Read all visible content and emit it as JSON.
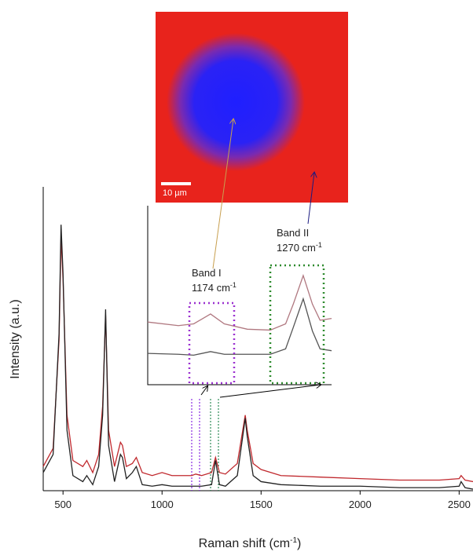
{
  "chart_data": [
    {
      "type": "line",
      "x_label": "Raman shift (cm",
      "x_label_sup": "-1",
      "x_label_end": ")",
      "y_label": "Intensity (a.u.)",
      "x": [
        400,
        450,
        480,
        490,
        500,
        520,
        550,
        600,
        620,
        650,
        680,
        700,
        715,
        730,
        760,
        790,
        800,
        820,
        850,
        870,
        900,
        950,
        1000,
        1050,
        1100,
        1150,
        1170,
        1200,
        1250,
        1270,
        1290,
        1320,
        1380,
        1420,
        1430,
        1460,
        1500,
        1600,
        1800,
        2000,
        2200,
        2400,
        2500,
        2510,
        2530,
        2570
      ],
      "series": [
        {
          "color": "#c0282d",
          "values": [
            8,
            14,
            50,
            84,
            70,
            25,
            10,
            8,
            10,
            6,
            12,
            28,
            58,
            20,
            8,
            16,
            15,
            8,
            9,
            11,
            6,
            5,
            6,
            5,
            5,
            5,
            5.5,
            5,
            6,
            11,
            6,
            5.5,
            9,
            25,
            20,
            9,
            7,
            5,
            4.5,
            4,
            3.5,
            3.5,
            4,
            5,
            3.5,
            3
          ]
        },
        {
          "color": "#222222",
          "values": [
            6,
            12,
            52,
            88,
            72,
            20,
            5,
            3,
            5,
            2,
            8,
            25,
            60,
            15,
            3,
            12,
            11,
            4,
            6,
            8,
            2,
            1.5,
            2,
            1.5,
            1.5,
            1.5,
            1.5,
            1.5,
            2,
            10,
            2,
            1.5,
            5,
            24,
            18,
            5,
            3,
            2,
            1.5,
            1.5,
            1,
            1,
            1.5,
            3,
            1,
            0.5
          ]
        }
      ],
      "xlim": [
        400,
        2570
      ],
      "ylim": [
        0,
        100
      ],
      "xticks": [
        500,
        1000,
        1500,
        2000,
        2500
      ]
    },
    {
      "type": "line",
      "x": [
        1100,
        1140,
        1160,
        1182,
        1200,
        1230,
        1260,
        1280,
        1290,
        1303,
        1315,
        1325,
        1340
      ],
      "series": [
        {
          "color": "#b07880",
          "values": [
            35,
            33,
            34,
            39.5,
            34,
            31,
            30.5,
            34,
            45,
            61,
            45,
            36,
            37
          ]
        },
        {
          "color": "#555555",
          "values": [
            17.5,
            17,
            16.5,
            18.5,
            17,
            17,
            17,
            20,
            32,
            48,
            30,
            20,
            19
          ]
        }
      ],
      "xlim": [
        1100,
        1340
      ],
      "ylim": [
        0,
        100
      ],
      "annotations": [
        {
          "label": "Band I",
          "position": "1174 cm",
          "sup": "-1"
        },
        {
          "label": "Band II",
          "position": "1270 cm",
          "sup": "-1"
        }
      ],
      "image": {
        "scale_bar": "10 µm"
      }
    }
  ]
}
